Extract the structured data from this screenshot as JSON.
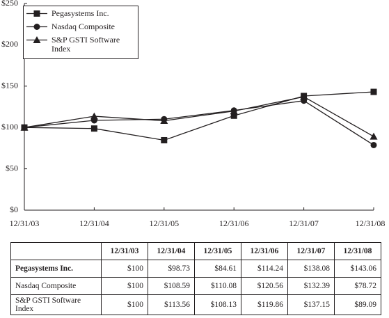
{
  "chart_data": {
    "type": "line",
    "categories": [
      "12/31/03",
      "12/31/04",
      "12/31/05",
      "12/31/06",
      "12/31/07",
      "12/31/08"
    ],
    "ylim": [
      0,
      250
    ],
    "yticks": [
      {
        "value": 0,
        "label": "$0"
      },
      {
        "value": 50,
        "label": "$50"
      },
      {
        "value": 100,
        "label": "$100"
      },
      {
        "value": 150,
        "label": "$150"
      },
      {
        "value": 200,
        "label": "$200"
      },
      {
        "value": 250,
        "label": "$250"
      }
    ],
    "legend": "upper left",
    "series": [
      {
        "name": "Pegasystems Inc.",
        "color": "#231f20",
        "marker": "square",
        "values": [
          100,
          98.73,
          84.61,
          114.24,
          138.08,
          143.06
        ],
        "value_labels": [
          "$100",
          "$98.73",
          "$84.61",
          "$114.24",
          "$138.08",
          "$143.06"
        ]
      },
      {
        "name": "Nasdaq Composite",
        "color": "#231f20",
        "marker": "circle",
        "values": [
          100,
          108.59,
          110.08,
          120.56,
          132.39,
          78.72
        ],
        "value_labels": [
          "$100",
          "$108.59",
          "$110.08",
          "$120.56",
          "$132.39",
          "$78.72"
        ]
      },
      {
        "name": "S&P GSTI Software Index",
        "color": "#231f20",
        "marker": "triangle",
        "values": [
          100,
          113.56,
          108.13,
          119.86,
          137.15,
          89.09
        ],
        "value_labels": [
          "$100",
          "$113.56",
          "$108.13",
          "$119.86",
          "$137.15",
          "$89.09"
        ]
      }
    ]
  }
}
